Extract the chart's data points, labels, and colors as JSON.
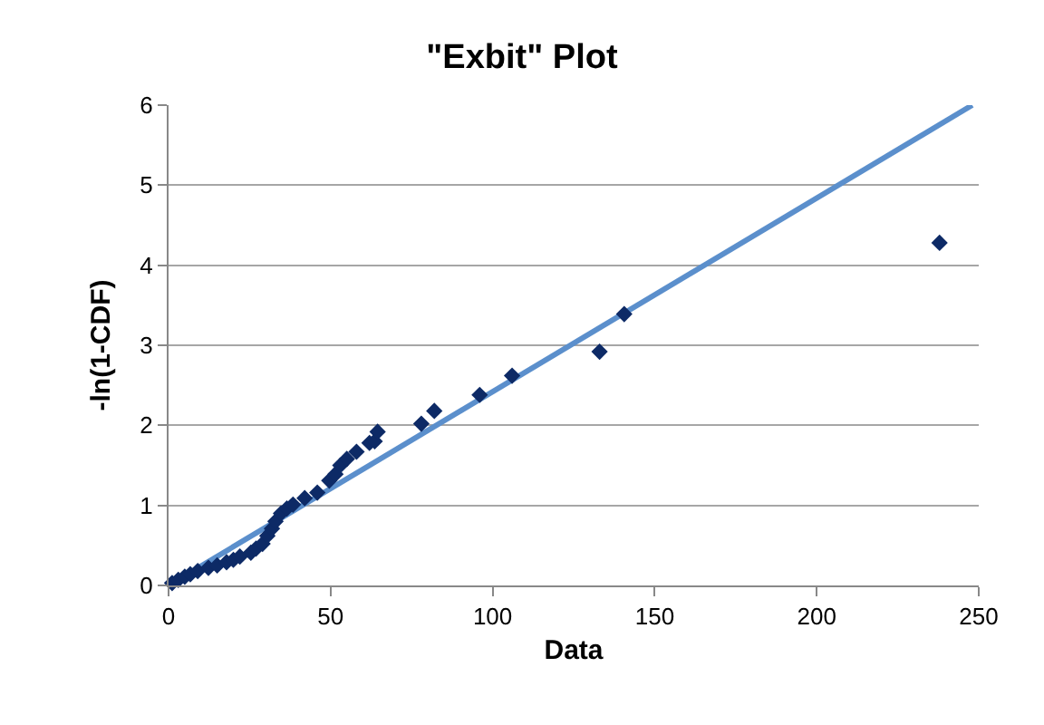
{
  "chart_data": {
    "type": "scatter",
    "title": "\"Exbit\" Plot",
    "xlabel": "Data",
    "ylabel": "-ln(1-CDF)",
    "xlim": [
      0,
      250
    ],
    "xticks": [
      0,
      50,
      100,
      150,
      200,
      250
    ],
    "ylim": [
      0,
      6
    ],
    "yticks": [
      0,
      1,
      2,
      3,
      4,
      5,
      6
    ],
    "grid": "y",
    "legend": false,
    "series": [
      {
        "marker": "diamond",
        "color": "#0d2a66",
        "x": [
          1.1,
          3,
          5,
          6.7,
          9,
          12.3,
          15,
          17.9,
          20,
          22,
          25.4,
          27,
          29,
          30.5,
          31.9,
          33,
          34.7,
          36.5,
          38.4,
          42,
          45.9,
          49.6,
          51.5,
          53,
          55,
          58,
          62,
          63.6,
          64.5,
          78,
          82,
          96,
          106,
          133,
          140.6,
          237.9
        ],
        "values": [
          0.03,
          0.07,
          0.11,
          0.14,
          0.18,
          0.22,
          0.25,
          0.29,
          0.32,
          0.36,
          0.41,
          0.46,
          0.52,
          0.62,
          0.71,
          0.8,
          0.9,
          0.96,
          1.01,
          1.09,
          1.16,
          1.31,
          1.39,
          1.5,
          1.58,
          1.67,
          1.78,
          1.8,
          1.92,
          2.02,
          2.18,
          2.38,
          2.62,
          2.92,
          3.39,
          4.28
        ]
      },
      {
        "type": "line",
        "marker": "none",
        "color": "#5b8fcc",
        "x": [
          0,
          248
        ],
        "values": [
          0,
          6
        ]
      }
    ]
  }
}
